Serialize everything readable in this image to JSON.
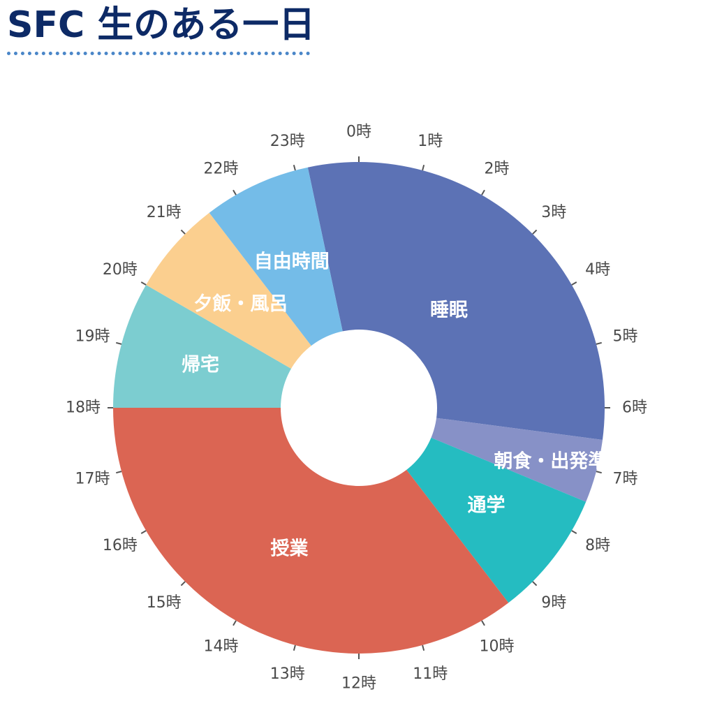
{
  "page": {
    "title": "SFC 生のある一日"
  },
  "chart_data": {
    "type": "pie",
    "donut": true,
    "unit": "時",
    "hour_labels": [
      "0時",
      "1時",
      "2時",
      "3時",
      "4時",
      "5時",
      "6時",
      "7時",
      "8時",
      "9時",
      "10時",
      "11時",
      "12時",
      "13時",
      "14時",
      "15時",
      "16時",
      "17時",
      "18時",
      "19時",
      "20時",
      "21時",
      "22時",
      "23時"
    ],
    "slices": [
      {
        "label": "睡眠",
        "start": 23.2,
        "end": 6.5,
        "color": "#5c72b5"
      },
      {
        "label": "朝食・出発準備",
        "start": 6.5,
        "end": 7.5,
        "color": "#8791c7"
      },
      {
        "label": "通学",
        "start": 7.5,
        "end": 9.5,
        "color": "#25bcc1"
      },
      {
        "label": "授業",
        "start": 9.5,
        "end": 18.0,
        "color": "#db6553"
      },
      {
        "label": "帰宅",
        "start": 18.0,
        "end": 20.0,
        "color": "#7ccdd0"
      },
      {
        "label": "夕飯・風呂",
        "start": 20.0,
        "end": 21.5,
        "color": "#fbcf8f"
      },
      {
        "label": "自由時間",
        "start": 21.5,
        "end": 23.2,
        "color": "#74bce8"
      }
    ]
  }
}
